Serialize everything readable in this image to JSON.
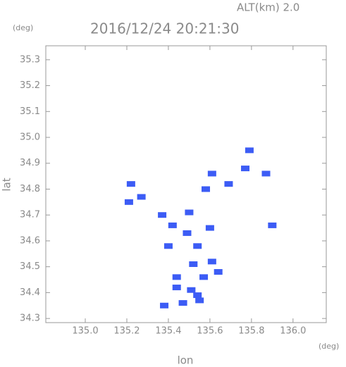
{
  "chart_data": {
    "type": "scatter",
    "subtitle": "ALT(km) 2.0",
    "title": "2016/12/24 20:21:30",
    "y_unit": "(deg)",
    "x_unit": "(deg)",
    "xlabel": "lon",
    "ylabel": "lat",
    "color": "#3c5cf5",
    "x": [
      135.79,
      135.77,
      135.87,
      135.61,
      135.69,
      135.58,
      135.22,
      135.21,
      135.27,
      135.9,
      135.49,
      135.6,
      135.42,
      135.54,
      135.4,
      135.52,
      135.64,
      135.61,
      135.57,
      135.44,
      135.51,
      135.54,
      135.44,
      135.38,
      135.47,
      135.55,
      135.5,
      135.37
    ],
    "values": [
      34.95,
      34.88,
      34.86,
      34.86,
      34.82,
      34.8,
      34.82,
      34.75,
      34.77,
      34.66,
      34.63,
      34.65,
      34.66,
      34.58,
      34.58,
      34.51,
      34.48,
      34.52,
      34.46,
      34.46,
      34.41,
      34.39,
      34.42,
      34.35,
      34.36,
      34.37,
      34.71,
      34.7
    ],
    "xlim": [
      134.81,
      136.16
    ],
    "ylim": [
      34.284,
      35.354
    ],
    "xticks": [
      {
        "value": 135.0,
        "label": "135.0"
      },
      135.2,
      135.4,
      135.6,
      135.8,
      {
        "value": 136.0,
        "label": "136.0"
      }
    ],
    "yticks": [
      34.3,
      34.4,
      34.5,
      34.6,
      34.7,
      34.8,
      34.9,
      {
        "value": 35.0,
        "label": "35.0"
      },
      35.1,
      35.2,
      35.3
    ],
    "grid": false
  }
}
